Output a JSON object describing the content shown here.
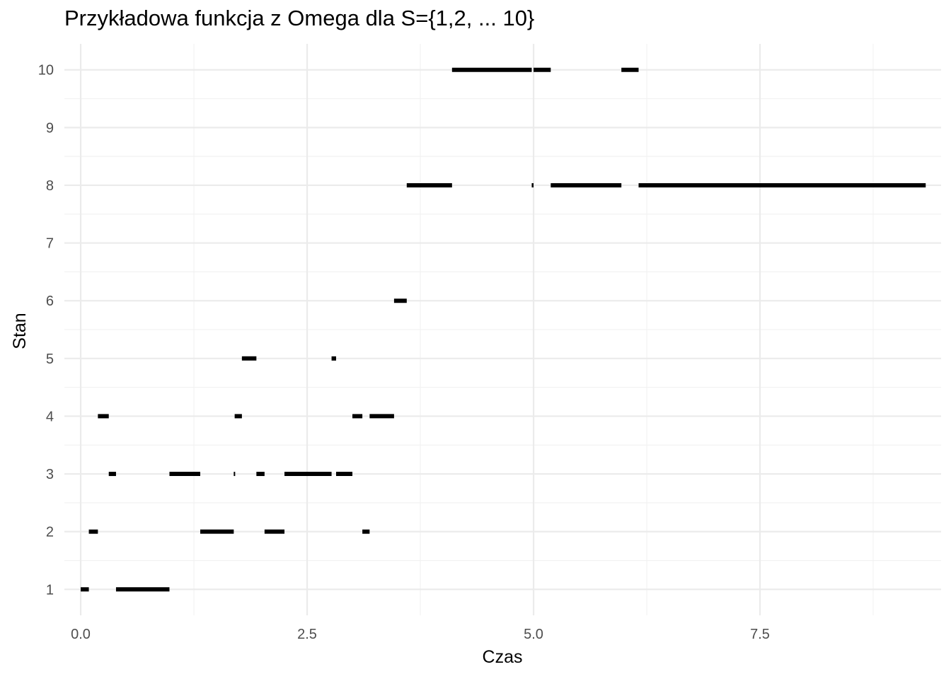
{
  "chart_data": {
    "type": "line",
    "style": "step segments (horizontal)",
    "title": "Przykładowa funkcja z Omega dla S={1,2, ... 10}",
    "xlabel": "Czas",
    "ylabel": "Stan",
    "xlim": [
      -0.18,
      9.5
    ],
    "ylim": [
      0.55,
      10.45
    ],
    "x_ticks": [
      0.0,
      2.5,
      5.0,
      7.5
    ],
    "x_tick_labels": [
      "0.0",
      "2.5",
      "5.0",
      "7.5"
    ],
    "x_minor_ticks": [
      1.25,
      3.75,
      6.25,
      8.75
    ],
    "y_ticks": [
      1,
      2,
      3,
      4,
      5,
      6,
      7,
      8,
      9,
      10
    ],
    "y_tick_labels": [
      "1",
      "2",
      "3",
      "4",
      "5",
      "6",
      "7",
      "8",
      "9",
      "10"
    ],
    "grid": true,
    "legend": "none",
    "line_color": "#000000",
    "segments": [
      {
        "x_start": 0.0,
        "x_end": 0.09,
        "state": 1
      },
      {
        "x_start": 0.09,
        "x_end": 0.19,
        "state": 2
      },
      {
        "x_start": 0.19,
        "x_end": 0.31,
        "state": 4
      },
      {
        "x_start": 0.31,
        "x_end": 0.39,
        "state": 3
      },
      {
        "x_start": 0.39,
        "x_end": 0.98,
        "state": 1
      },
      {
        "x_start": 0.98,
        "x_end": 1.32,
        "state": 3
      },
      {
        "x_start": 1.32,
        "x_end": 1.69,
        "state": 2
      },
      {
        "x_start": 1.69,
        "x_end": 1.7,
        "state": 3
      },
      {
        "x_start": 1.7,
        "x_end": 1.78,
        "state": 4
      },
      {
        "x_start": 1.78,
        "x_end": 1.94,
        "state": 5
      },
      {
        "x_start": 1.94,
        "x_end": 2.03,
        "state": 3
      },
      {
        "x_start": 2.03,
        "x_end": 2.25,
        "state": 2
      },
      {
        "x_start": 2.25,
        "x_end": 2.77,
        "state": 3
      },
      {
        "x_start": 2.77,
        "x_end": 2.82,
        "state": 5
      },
      {
        "x_start": 2.82,
        "x_end": 3.0,
        "state": 3
      },
      {
        "x_start": 3.0,
        "x_end": 3.11,
        "state": 4
      },
      {
        "x_start": 3.11,
        "x_end": 3.19,
        "state": 2
      },
      {
        "x_start": 3.19,
        "x_end": 3.46,
        "state": 4
      },
      {
        "x_start": 3.46,
        "x_end": 3.6,
        "state": 6
      },
      {
        "x_start": 3.6,
        "x_end": 4.1,
        "state": 8
      },
      {
        "x_start": 4.1,
        "x_end": 4.98,
        "state": 10
      },
      {
        "x_start": 4.98,
        "x_end": 5.0,
        "state": 8
      },
      {
        "x_start": 5.0,
        "x_end": 5.19,
        "state": 10
      },
      {
        "x_start": 5.19,
        "x_end": 5.97,
        "state": 8
      },
      {
        "x_start": 5.97,
        "x_end": 6.16,
        "state": 10
      },
      {
        "x_start": 6.16,
        "x_end": 9.33,
        "state": 8
      }
    ]
  }
}
